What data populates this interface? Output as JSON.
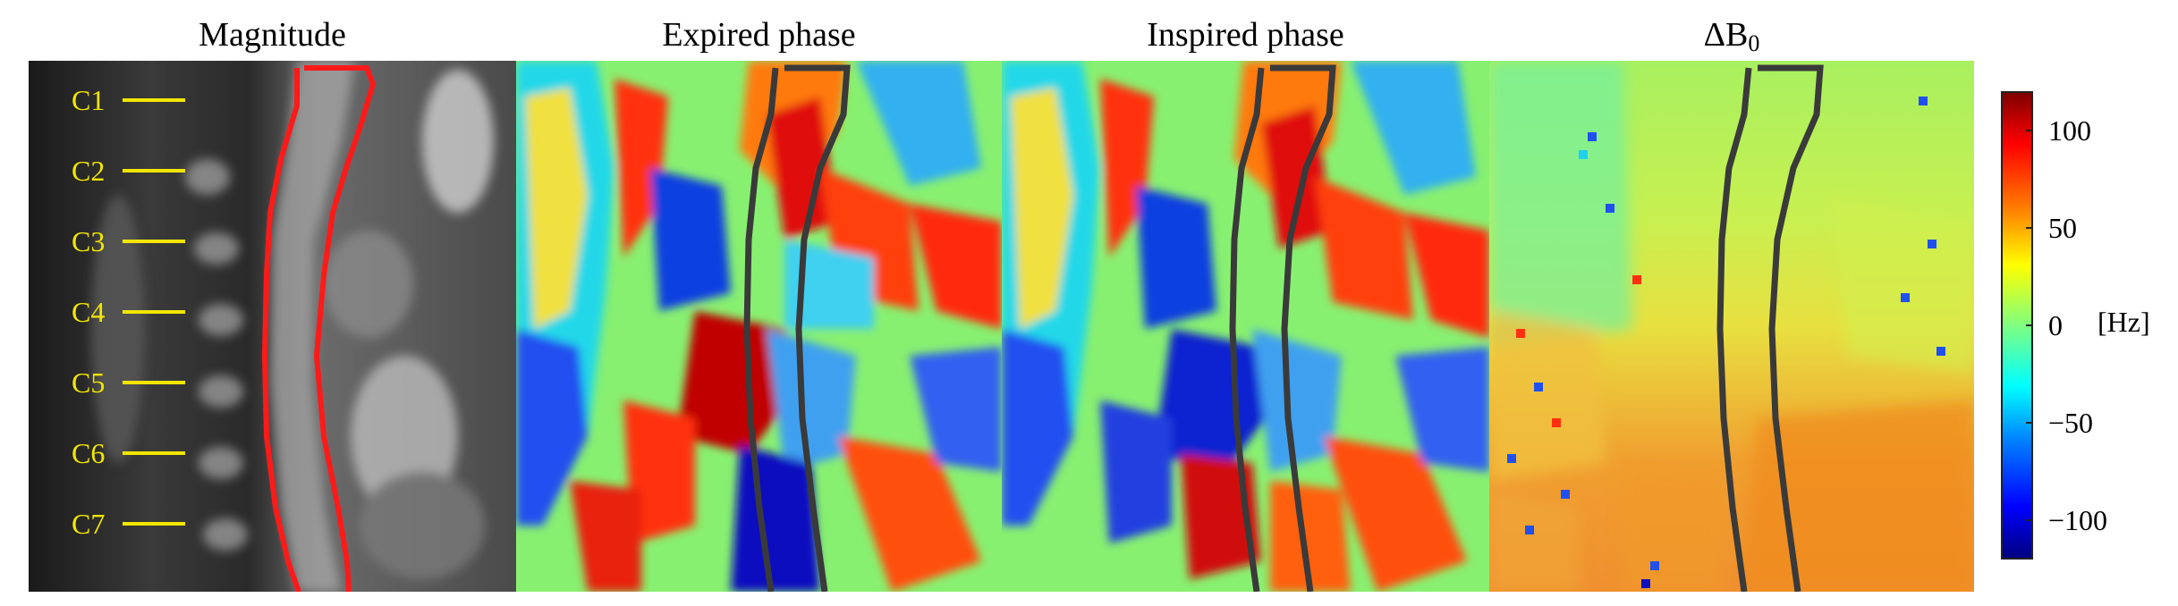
{
  "panels": [
    {
      "id": "magnitude",
      "title": "Magnitude"
    },
    {
      "id": "expired",
      "title": "Expired phase"
    },
    {
      "id": "inspired",
      "title": "Inspired phase"
    },
    {
      "id": "deltab0",
      "title_main": "ΔB",
      "title_sub": "0"
    }
  ],
  "vertebral_levels": [
    "C1",
    "C2",
    "C3",
    "C4",
    "C5",
    "C6",
    "C7"
  ],
  "colorbar": {
    "ticks": [
      "100",
      "50",
      "0",
      "−50",
      "−100"
    ],
    "tick_values": [
      100,
      50,
      0,
      -50,
      -100
    ],
    "range": [
      -120,
      120
    ],
    "unit": "[Hz]",
    "colormap": "jet"
  },
  "colors": {
    "spinal_cord_outline_magnitude": "#ff1a1a",
    "spinal_cord_outline_maps": "#3a3a3a",
    "level_markers": "#f2e600",
    "background_mask": "#88f070"
  }
}
